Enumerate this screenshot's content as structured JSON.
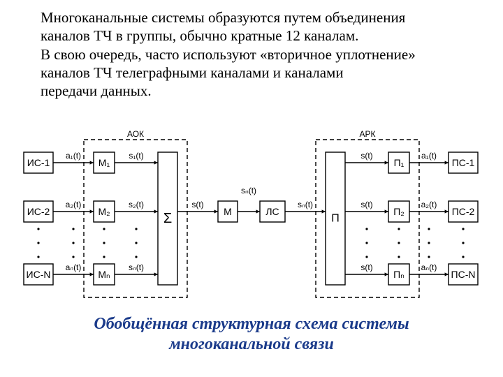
{
  "paragraph": {
    "l1": "Многоканальные системы образуются путем объединения",
    "l2": "каналов ТЧ в группы, обычно кратные 12 каналам.",
    "l3": "В свою очередь, часто используют «вторичное уплотнение»",
    "l4": "каналов ТЧ телеграфными каналами и каналами",
    "l5": "передачи данных."
  },
  "caption": {
    "l1": "Обобщённая структурная схема системы",
    "l2": "многоканальной связи"
  },
  "diagram": {
    "colors": {
      "stroke": "#000000",
      "fill": "#ffffff",
      "bg": "#ffffff"
    },
    "stroke_width": 1.4,
    "font_small": 12,
    "font_block": 14,
    "dash": "6,4",
    "dots_r": 1.6,
    "arrow_head": 6,
    "left_group_label": "АОК",
    "right_group_label": "АРК",
    "left_sources": [
      "ИС-1",
      "ИС-2",
      "ИС-N"
    ],
    "right_sinks": [
      "ПС-1",
      "ПС-2",
      "ПС-N"
    ],
    "left_mods": [
      "М₁",
      "М₂",
      "Мₙ"
    ],
    "right_demods": [
      "П₁",
      "П₂",
      "Пₙ"
    ],
    "a_in_labels": [
      "a₁(t)",
      "a₂(t)",
      "aₙ(t)"
    ],
    "s_labels": [
      "s₁(t)",
      "s₂(t)",
      "sₙ(t)"
    ],
    "a_out_labels": [
      "a₁(t)",
      "a₂(t)",
      "aₙ(t)"
    ],
    "s_right_labels": [
      "s(t)",
      "s(t)",
      "s(t)"
    ],
    "sigma": "Σ",
    "M_block": "М",
    "LS_block": "ЛС",
    "P_block": "П",
    "center_top_label": "sₙ(t)",
    "center_mid_label_left": "s(t)",
    "center_mid_label_right": "sₙ(t)"
  }
}
